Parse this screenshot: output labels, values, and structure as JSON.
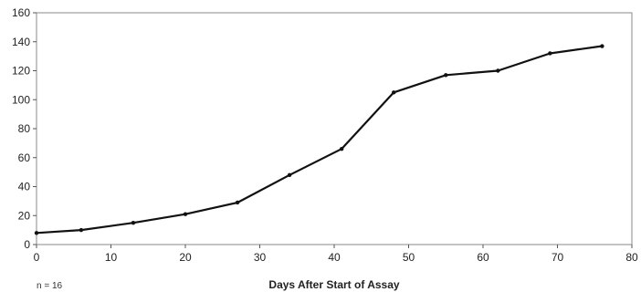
{
  "chart_data": {
    "type": "line",
    "title": "",
    "xlabel": "Days After Start of Assay",
    "ylabel": "",
    "note": "n = 16",
    "xlim": [
      0,
      80
    ],
    "ylim": [
      0,
      160
    ],
    "xticks": [
      0,
      10,
      20,
      30,
      40,
      50,
      60,
      70,
      80
    ],
    "yticks": [
      0,
      20,
      40,
      60,
      80,
      100,
      120,
      140,
      160
    ],
    "grid": false,
    "legend": "none",
    "line_color": "#111111",
    "series": [
      {
        "x": [
          0,
          6,
          13,
          20,
          27,
          34,
          41,
          48,
          55,
          62,
          69,
          76
        ],
        "y": [
          8,
          10,
          15,
          21,
          29,
          48,
          66,
          105,
          117,
          120,
          132,
          137
        ]
      }
    ]
  }
}
